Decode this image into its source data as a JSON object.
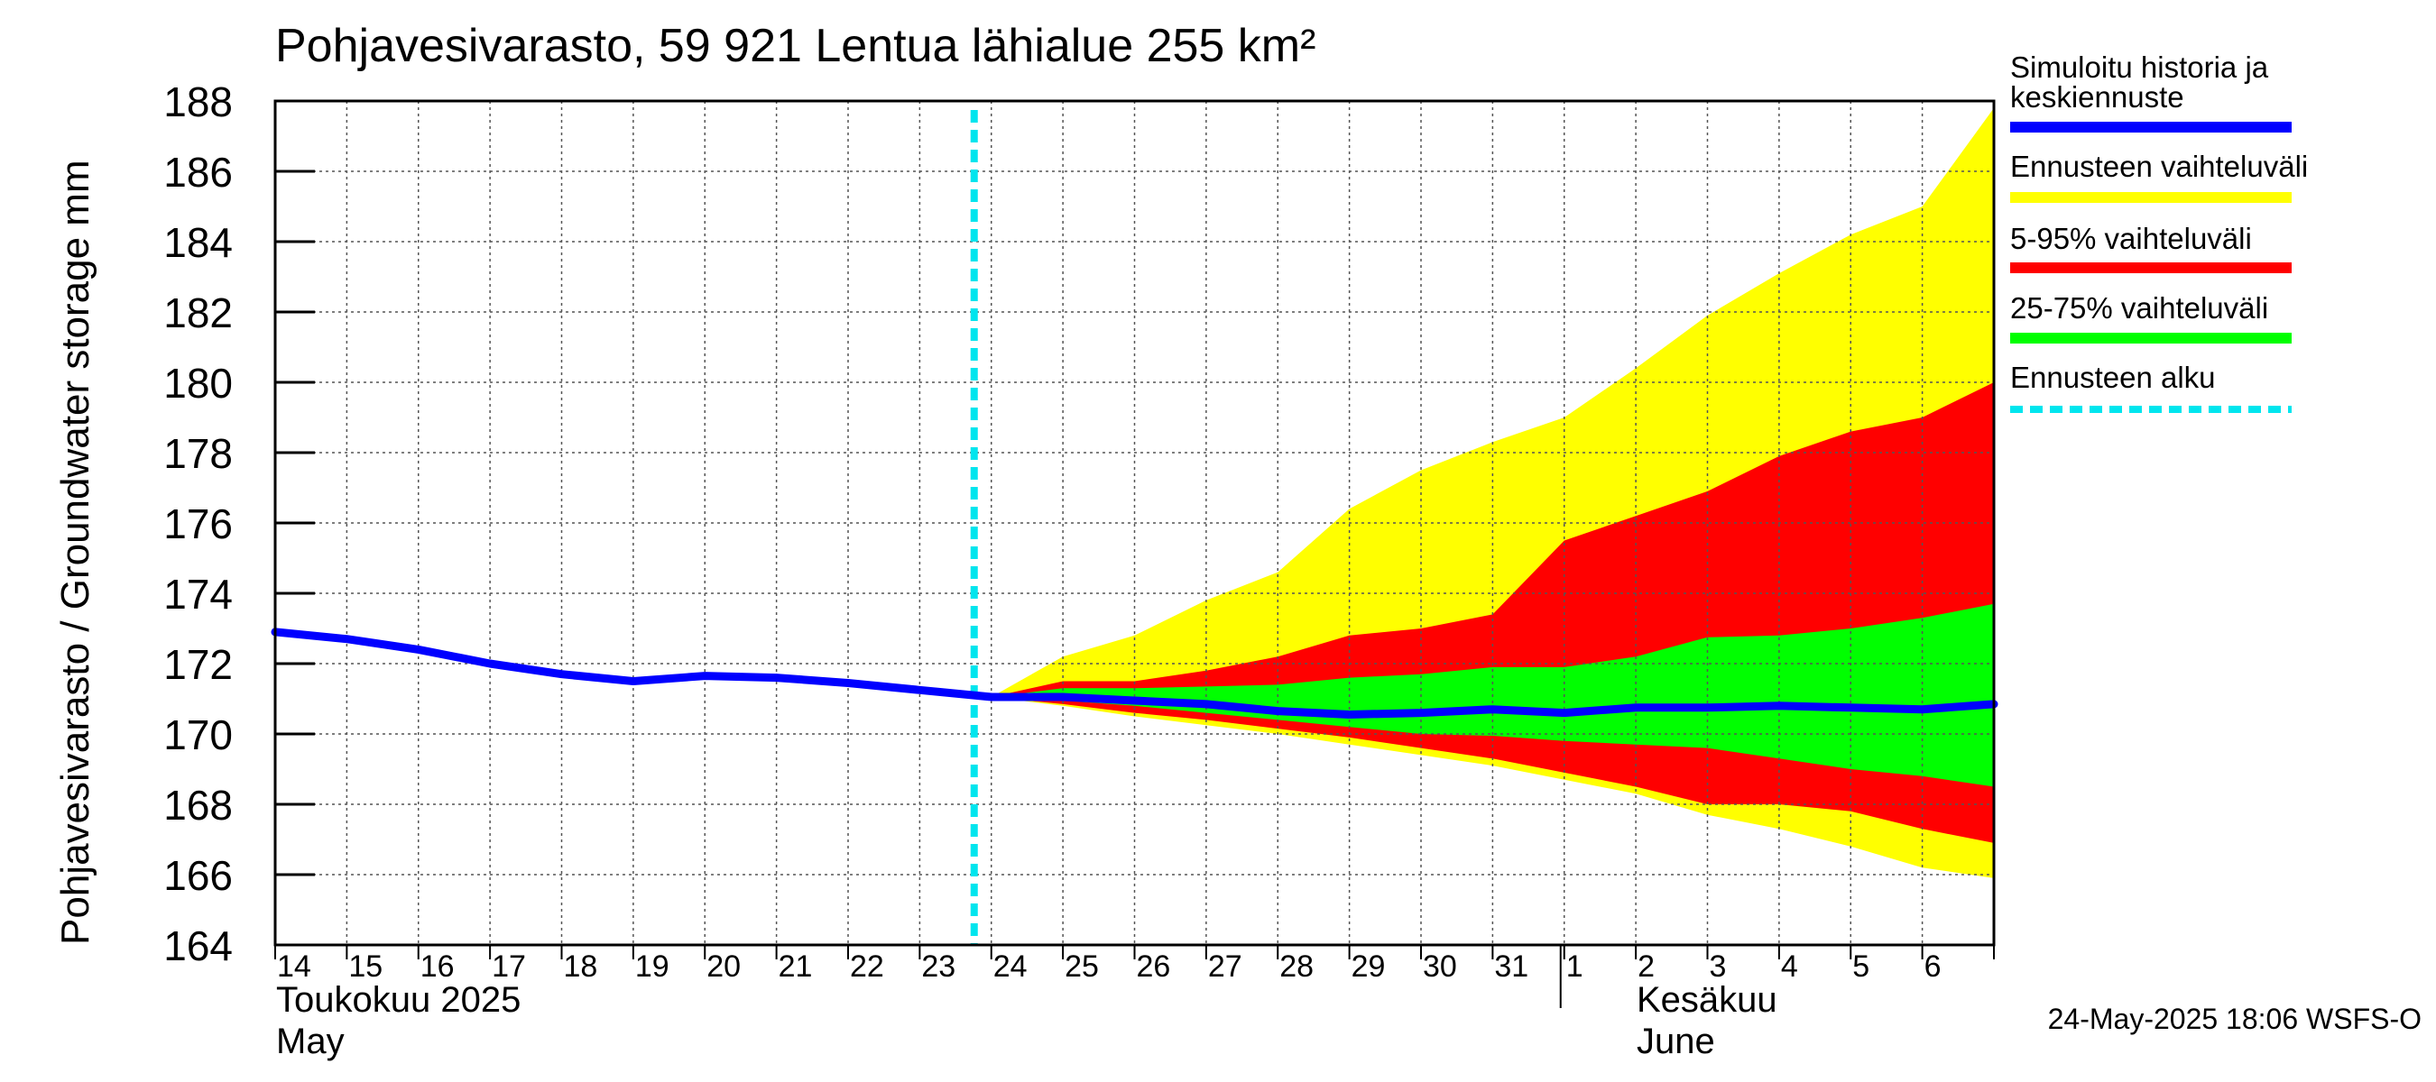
{
  "chart_data": {
    "type": "area",
    "title": "Pohjavesivarasto, 59 921 Lentua lähialue 255 km²",
    "ylabel": "Pohjavesivarasto / Groundwater storage   mm",
    "ylim": [
      164,
      188
    ],
    "yticks": [
      "164",
      "166",
      "168",
      "170",
      "172",
      "174",
      "176",
      "178",
      "180",
      "182",
      "184",
      "186",
      "188"
    ],
    "x_start": "2025-05-14",
    "x_end": "2025-06-07",
    "x_tick_labels": [
      "14",
      "15",
      "16",
      "17",
      "18",
      "19",
      "20",
      "21",
      "22",
      "23",
      "24",
      "25",
      "26",
      "27",
      "28",
      "29",
      "30",
      "31",
      "1",
      "2",
      "3",
      "4",
      "5",
      "6"
    ],
    "month_labels": [
      {
        "line1": "Toukokuu  2025",
        "line2": "May"
      },
      {
        "line1": "Kesäkuu",
        "line2": "June"
      }
    ],
    "grid": true,
    "forecast_start": "2025-05-24",
    "series": [
      {
        "name": "Simuloitu historia ja keskiennuste",
        "color": "#0000ff",
        "x": [
          "2025-05-14",
          "2025-05-15",
          "2025-05-16",
          "2025-05-17",
          "2025-05-18",
          "2025-05-19",
          "2025-05-20",
          "2025-05-21",
          "2025-05-22",
          "2025-05-23",
          "2025-05-24",
          "2025-05-25",
          "2025-05-26",
          "2025-05-27",
          "2025-05-28",
          "2025-05-29",
          "2025-05-30",
          "2025-05-31",
          "2025-06-01",
          "2025-06-02",
          "2025-06-03",
          "2025-06-04",
          "2025-06-05",
          "2025-06-06",
          "2025-06-07"
        ],
        "values": [
          172.9,
          172.7,
          172.4,
          172.0,
          171.7,
          171.5,
          171.65,
          171.6,
          171.45,
          171.25,
          171.05,
          171.05,
          170.95,
          170.85,
          170.65,
          170.55,
          170.6,
          170.7,
          170.6,
          170.75,
          170.75,
          170.8,
          170.75,
          170.7,
          170.85
        ]
      }
    ],
    "bands": [
      {
        "name": "Ennusteen vaihteluväli",
        "color": "#ffff00",
        "x": [
          "2025-05-24",
          "2025-05-25",
          "2025-05-26",
          "2025-05-27",
          "2025-05-28",
          "2025-05-29",
          "2025-05-30",
          "2025-05-31",
          "2025-06-01",
          "2025-06-02",
          "2025-06-03",
          "2025-06-04",
          "2025-06-05",
          "2025-06-06",
          "2025-06-07"
        ],
        "upper": [
          171.05,
          172.2,
          172.8,
          173.8,
          174.6,
          176.4,
          177.5,
          178.3,
          179.0,
          180.4,
          181.9,
          183.1,
          184.2,
          185.0,
          187.8
        ],
        "lower": [
          171.05,
          170.8,
          170.5,
          170.25,
          170.0,
          169.7,
          169.4,
          169.1,
          168.7,
          168.3,
          167.7,
          167.3,
          166.8,
          166.2,
          165.9
        ]
      },
      {
        "name": "5-95% vaihteluväli",
        "color": "#ff0000",
        "x": [
          "2025-05-24",
          "2025-05-25",
          "2025-05-26",
          "2025-05-27",
          "2025-05-28",
          "2025-05-29",
          "2025-05-30",
          "2025-05-31",
          "2025-06-01",
          "2025-06-02",
          "2025-06-03",
          "2025-06-04",
          "2025-06-05",
          "2025-06-06",
          "2025-06-07"
        ],
        "upper": [
          171.05,
          171.5,
          171.5,
          171.8,
          172.2,
          172.8,
          173.0,
          173.4,
          175.5,
          176.2,
          176.9,
          177.9,
          178.6,
          179.0,
          180.0
        ],
        "lower": [
          171.05,
          170.85,
          170.6,
          170.4,
          170.15,
          169.9,
          169.6,
          169.3,
          168.9,
          168.5,
          168.0,
          168.0,
          167.8,
          167.3,
          166.9
        ]
      },
      {
        "name": "25-75% vaihteluväli",
        "color": "#00ff00",
        "x": [
          "2025-05-24",
          "2025-05-25",
          "2025-05-26",
          "2025-05-27",
          "2025-05-28",
          "2025-05-29",
          "2025-05-30",
          "2025-05-31",
          "2025-06-01",
          "2025-06-02",
          "2025-06-03",
          "2025-06-04",
          "2025-06-05",
          "2025-06-06",
          "2025-06-07"
        ],
        "upper": [
          171.05,
          171.3,
          171.3,
          171.35,
          171.4,
          171.6,
          171.7,
          171.9,
          171.9,
          172.2,
          172.75,
          172.8,
          173.0,
          173.3,
          173.7
        ],
        "lower": [
          171.05,
          170.95,
          170.8,
          170.6,
          170.4,
          170.2,
          170.0,
          169.95,
          169.8,
          169.7,
          169.6,
          169.3,
          169.0,
          168.8,
          168.5
        ]
      }
    ],
    "legend": [
      {
        "label": "Simuloitu historia ja keskiennuste",
        "color": "#0000ff",
        "style": "solid"
      },
      {
        "label": "Ennusteen vaihteluväli",
        "color": "#ffff00",
        "style": "solid"
      },
      {
        "label": "5-95% vaihteluväli",
        "color": "#ff0000",
        "style": "solid"
      },
      {
        "label": "25-75% vaihteluväli",
        "color": "#00ff00",
        "style": "solid"
      },
      {
        "label": "Ennusteen alku",
        "color": "#00e5ee",
        "style": "dashed"
      }
    ],
    "legend_position": "right",
    "footer": "24-May-2025 18:06 WSFS-O"
  }
}
